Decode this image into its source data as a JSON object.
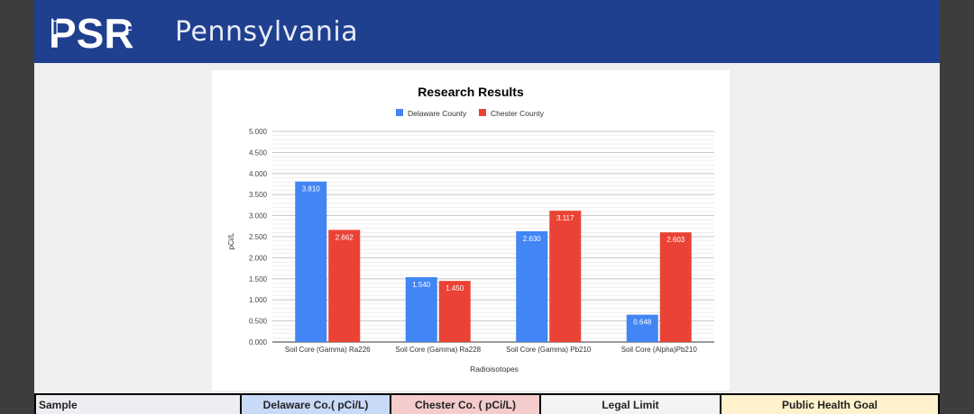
{
  "header": {
    "logo_text": "PSR",
    "org_name": "Pennsylvania"
  },
  "colors": {
    "header_bg": "#1f3f8f",
    "delaware": "#4285f4",
    "chester": "#ea4335"
  },
  "chart_data": {
    "type": "bar",
    "title": "Research Results",
    "xlabel": "Radioisotopes",
    "ylabel": "pCi/L",
    "ylim": [
      0,
      5
    ],
    "y_ticks": [
      "0.000",
      "0.500",
      "1.000",
      "1.500",
      "2.000",
      "2.500",
      "3.000",
      "3.500",
      "4.000",
      "4.500",
      "5.000"
    ],
    "categories": [
      "Soil Core (Gamma) Ra226",
      "Soil Core (Gamma) Ra228",
      "Soil Core (Gamma) Pb210",
      "Soil Core (Alpha)Pb210"
    ],
    "series": [
      {
        "name": "Delaware County",
        "color": "#4285f4",
        "values": [
          3.81,
          1.54,
          2.63,
          0.648
        ],
        "labels": [
          "3.810",
          "1.540",
          "2.630",
          "0.648"
        ]
      },
      {
        "name": "Chester County",
        "color": "#ea4335",
        "values": [
          2.662,
          1.45,
          3.117,
          2.603
        ],
        "labels": [
          "2.662",
          "1.450",
          "3.117",
          "2.603"
        ]
      }
    ],
    "legend": "top-center",
    "grid": true
  },
  "table": {
    "headers": [
      "Sample",
      "Delaware Co.( pCi/L)",
      "Chester Co. ( pCi/L)",
      "Legal Limit",
      "Public Health Goal"
    ]
  }
}
